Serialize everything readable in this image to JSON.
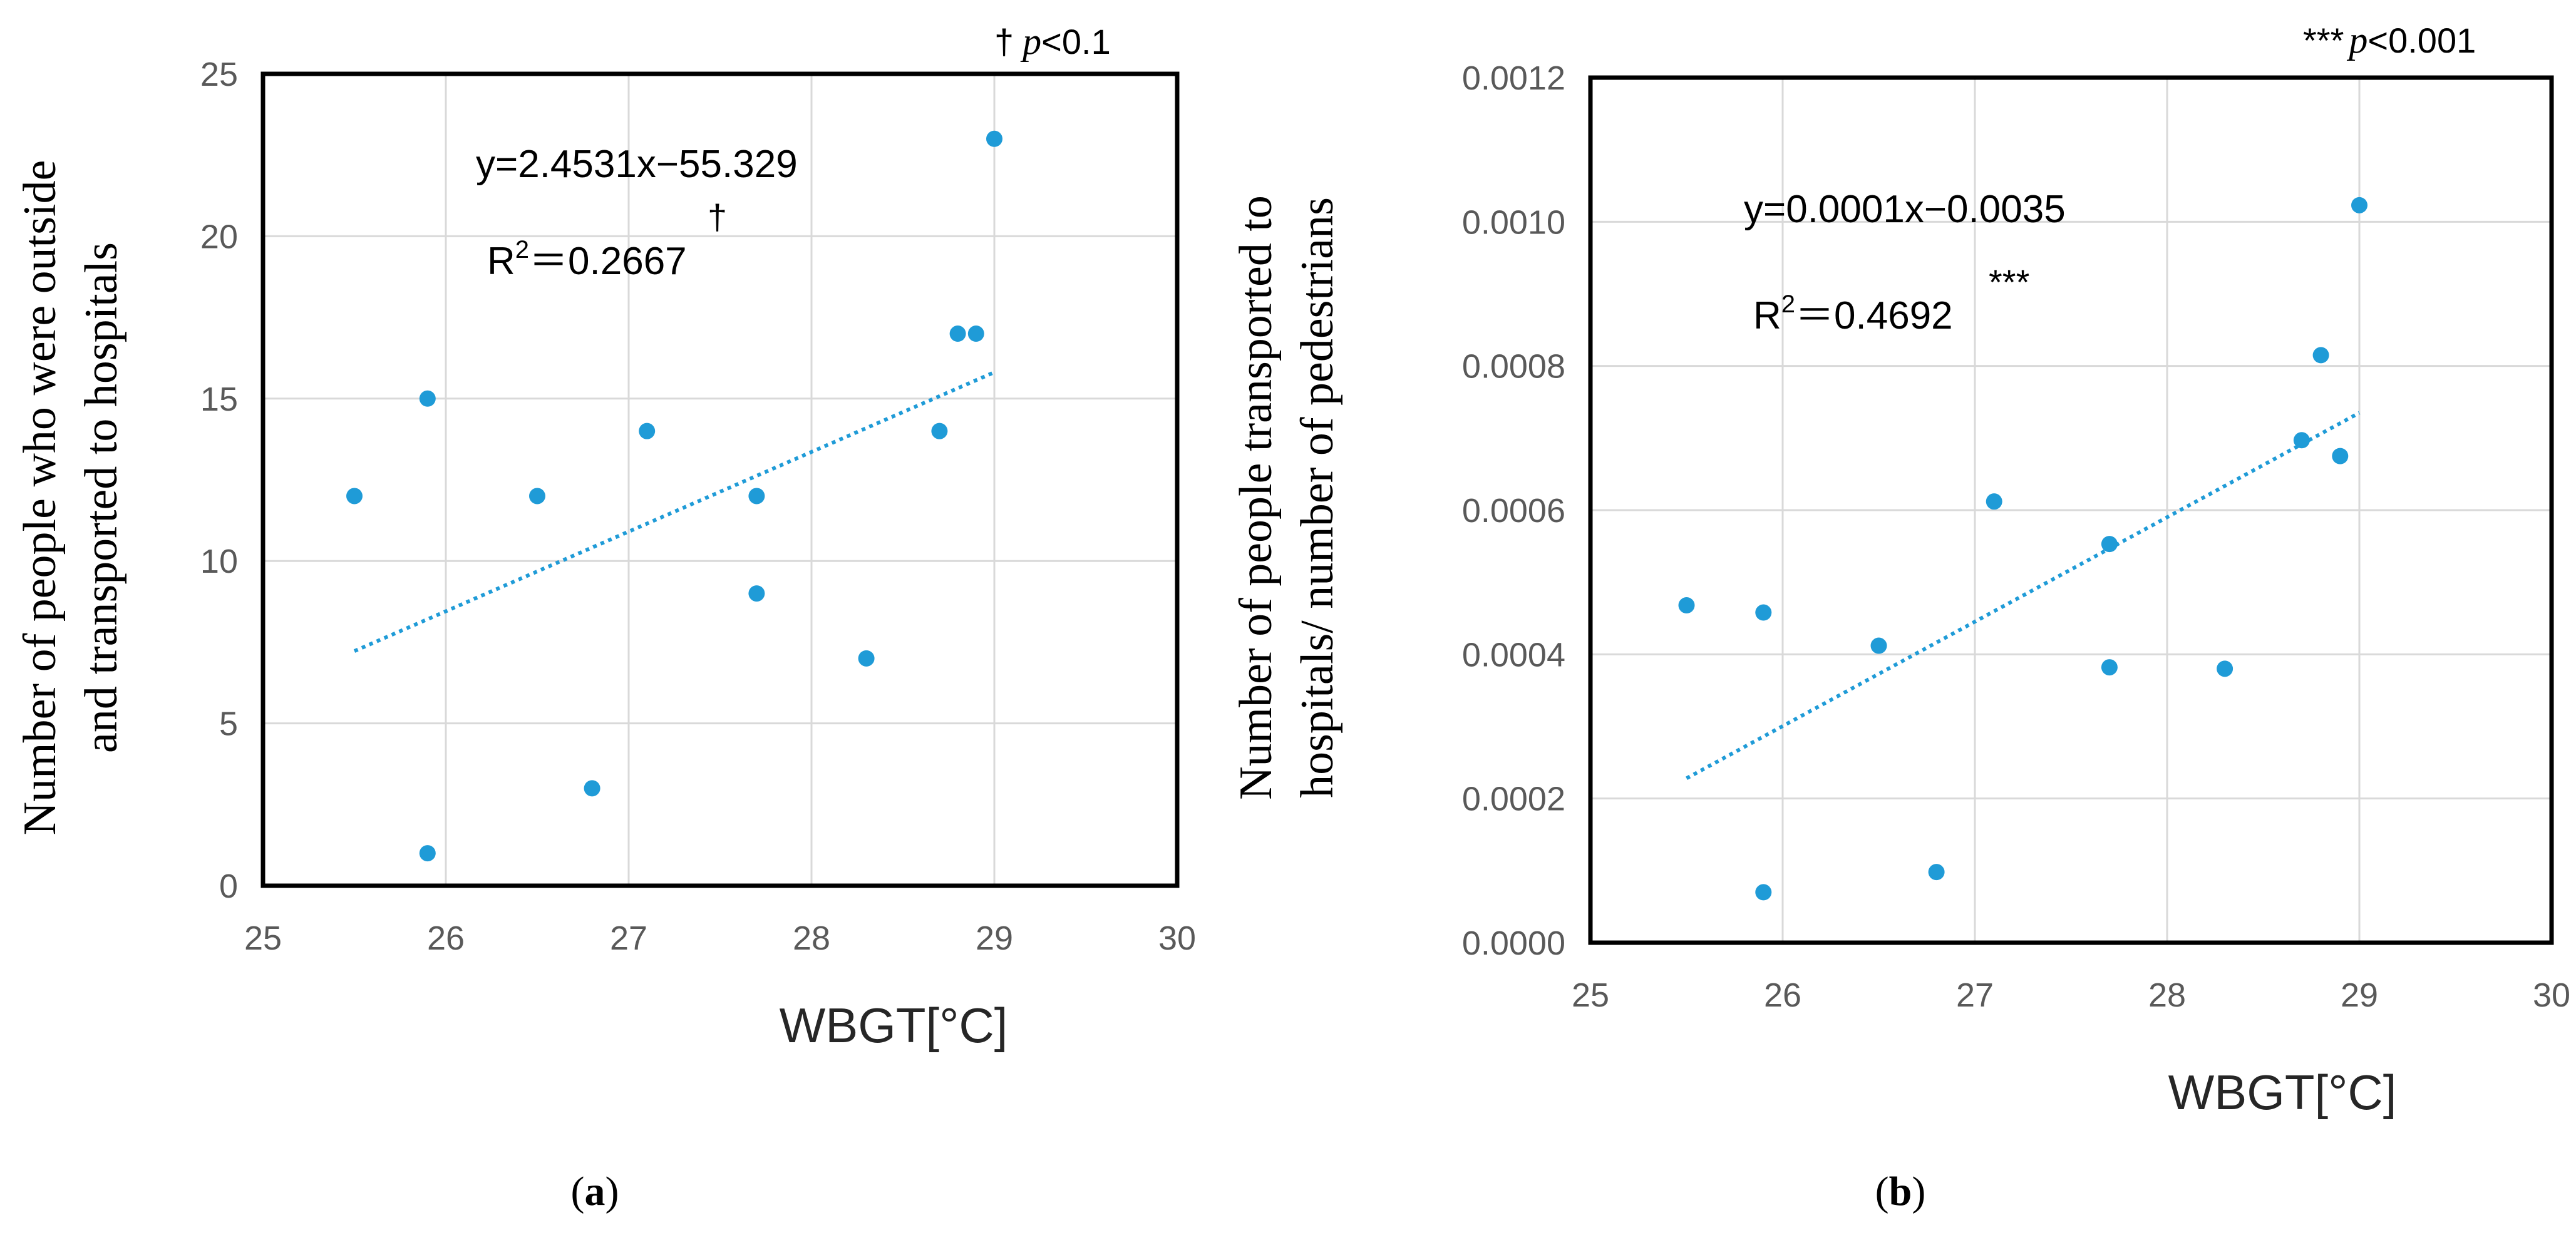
{
  "chart_data": [
    {
      "type": "scatter",
      "panel_label": "a",
      "xlabel": "WBGT[°C]",
      "ylabel_lines": [
        "Number of people who were outside",
        "and transported to hospitals"
      ],
      "xlim": [
        25,
        30
      ],
      "ylim": [
        0,
        25
      ],
      "xticks": [
        "25",
        "26",
        "27",
        "28",
        "29",
        "30"
      ],
      "yticks": [
        "0",
        "5",
        "10",
        "15",
        "20",
        "25"
      ],
      "points": [
        {
          "x": 25.5,
          "y": 12
        },
        {
          "x": 25.9,
          "y": 15
        },
        {
          "x": 25.9,
          "y": 1
        },
        {
          "x": 26.5,
          "y": 12
        },
        {
          "x": 26.8,
          "y": 3
        },
        {
          "x": 27.1,
          "y": 14
        },
        {
          "x": 27.7,
          "y": 12
        },
        {
          "x": 27.7,
          "y": 9
        },
        {
          "x": 28.3,
          "y": 7
        },
        {
          "x": 28.7,
          "y": 14
        },
        {
          "x": 28.8,
          "y": 17
        },
        {
          "x": 28.9,
          "y": 17
        },
        {
          "x": 29.0,
          "y": 23
        }
      ],
      "trendline": {
        "slope": 2.4531,
        "intercept": -55.329,
        "x_range": [
          25.5,
          29.0
        ]
      },
      "equation": "y=2.4531x−55.329",
      "r2_prefix": "R",
      "r2_sup": "2",
      "r2_value": "＝0.2667",
      "r2_mark": "†",
      "significance": {
        "mark": "†",
        "p": "p",
        "rest": "<0.1"
      }
    },
    {
      "type": "scatter",
      "panel_label": "b",
      "xlabel": "WBGT[°C]",
      "ylabel_lines": [
        "Number of people transported to",
        "hospitals/ number of pedestrians"
      ],
      "xlim": [
        25,
        30
      ],
      "ylim": [
        0,
        0.0012
      ],
      "xticks": [
        "25",
        "26",
        "27",
        "28",
        "29",
        "30"
      ],
      "yticks": [
        "0.0000",
        "0.0002",
        "0.0004",
        "0.0006",
        "0.0008",
        "0.0010",
        "0.0012"
      ],
      "points": [
        {
          "x": 25.5,
          "y": 0.000468
        },
        {
          "x": 25.9,
          "y": 0.000458
        },
        {
          "x": 25.9,
          "y": 7e-05
        },
        {
          "x": 26.5,
          "y": 0.000412
        },
        {
          "x": 26.8,
          "y": 9.8e-05
        },
        {
          "x": 27.1,
          "y": 0.000612
        },
        {
          "x": 27.7,
          "y": 0.000553
        },
        {
          "x": 27.7,
          "y": 0.000382
        },
        {
          "x": 28.3,
          "y": 0.00038
        },
        {
          "x": 28.7,
          "y": 0.000697
        },
        {
          "x": 28.8,
          "y": 0.000815
        },
        {
          "x": 28.9,
          "y": 0.000675
        },
        {
          "x": 29.0,
          "y": 0.001023
        }
      ],
      "trendline": {
        "x_range": [
          25.5,
          29.0
        ],
        "y_range": [
          0.000228,
          0.000735
        ]
      },
      "equation": "y=0.0001x−0.0035",
      "r2_prefix": "R",
      "r2_sup": "2",
      "r2_value": "＝0.4692",
      "r2_mark": "***",
      "significance": {
        "mark": "***",
        "p": "p",
        "rest": "<0.001"
      }
    }
  ]
}
